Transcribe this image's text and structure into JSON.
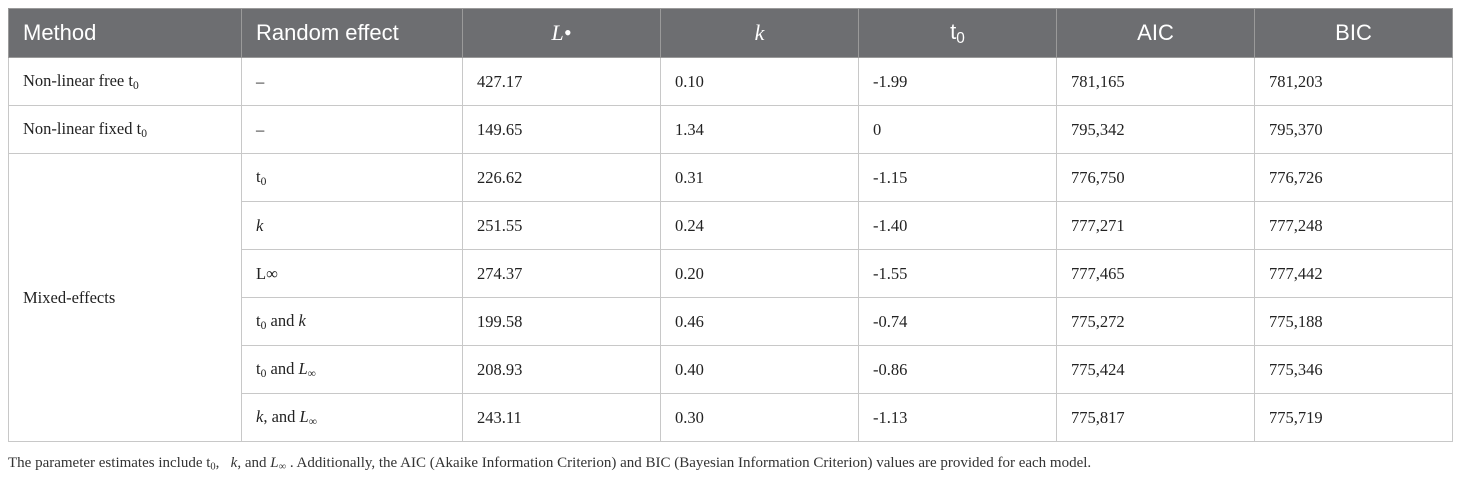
{
  "headers": [
    "Method",
    "Random effect",
    "L•",
    "k",
    "t0",
    "AIC",
    "BIC"
  ],
  "rows": [
    {
      "method": "Non-linear free t0",
      "effect": "–",
      "L": "427.17",
      "k": "0.10",
      "t0": "-1.99",
      "aic": "781,165",
      "bic": "781,203"
    },
    {
      "method": "Non-linear fixed t0",
      "effect": "–",
      "L": "149.65",
      "k": "1.34",
      "t0": "0",
      "aic": "795,342",
      "bic": "795,370"
    },
    {
      "method": "Mixed-effects",
      "effect": "t0",
      "L": "226.62",
      "k": "0.31",
      "t0": "-1.15",
      "aic": "776,750",
      "bic": "776,726"
    },
    {
      "method": "",
      "effect": "k",
      "L": "251.55",
      "k": "0.24",
      "t0": "-1.40",
      "aic": "777,271",
      "bic": "777,248"
    },
    {
      "method": "",
      "effect": "L∞",
      "L": "274.37",
      "k": "0.20",
      "t0": "-1.55",
      "aic": "777,465",
      "bic": "777,442"
    },
    {
      "method": "",
      "effect": "t0 and k",
      "L": "199.58",
      "k": "0.46",
      "t0": "-0.74",
      "aic": "775,272",
      "bic": "775,188"
    },
    {
      "method": "",
      "effect": "t0 and L∞",
      "L": "208.93",
      "k": "0.40",
      "t0": "-0.86",
      "aic": "775,424",
      "bic": "775,346"
    },
    {
      "method": "",
      "effect": "k, and L∞",
      "L": "243.11",
      "k": "0.30",
      "t0": "-1.13",
      "aic": "775,817",
      "bic": "775,719"
    }
  ],
  "caption": "The parameter estimates include t0,   k, and L∞ . Additionally, the AIC (Akaike Information Criterion) and BIC (Bayesian Information Criterion) values are provided for each model."
}
